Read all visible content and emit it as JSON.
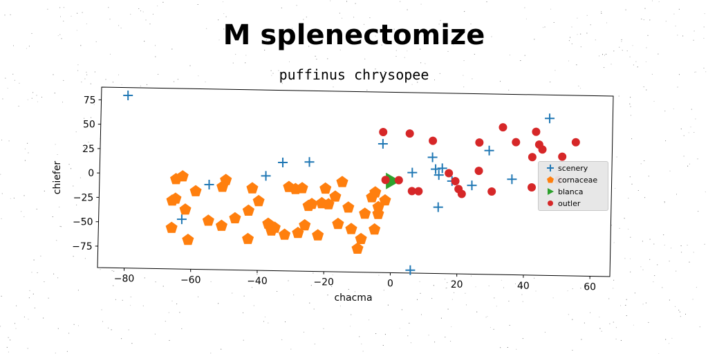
{
  "title": "M splenectomize",
  "subtitle": "puffinus chrysopee",
  "chart_data": {
    "type": "scatter",
    "xlabel": "chacma",
    "ylabel": "chiefer",
    "xlim": [
      -88,
      66
    ],
    "ylim": [
      -97,
      88
    ],
    "xticks": [
      -80,
      -60,
      -40,
      -20,
      0,
      20,
      40,
      60
    ],
    "xtick_labels": [
      "−80",
      "−60",
      "−40",
      "−20",
      "0",
      "20",
      "40",
      "60"
    ],
    "yticks": [
      75,
      50,
      25,
      0,
      -25,
      -50,
      -75
    ],
    "ytick_labels": [
      "75",
      "50",
      "25",
      "0",
      "−25",
      "−50",
      "−75"
    ],
    "grid": false,
    "legend_position": "center-right",
    "series": [
      {
        "name": "scenery",
        "marker": "plus",
        "color": "#1f77b4",
        "points": [
          [
            -80,
            80
          ],
          [
            -63,
            -46
          ],
          [
            -55,
            -10
          ],
          [
            -38,
            0
          ],
          [
            -33,
            14
          ],
          [
            -25,
            15
          ],
          [
            -3,
            35
          ],
          [
            6,
            6
          ],
          [
            6,
            -94
          ],
          [
            12,
            22
          ],
          [
            13,
            10
          ],
          [
            14,
            4
          ],
          [
            14,
            -29
          ],
          [
            15,
            11
          ],
          [
            18,
            -2
          ],
          [
            24,
            -6
          ],
          [
            29,
            30
          ],
          [
            36,
            1
          ],
          [
            47,
            64
          ]
        ]
      },
      {
        "name": "cornaceae",
        "marker": "pentagon",
        "color": "#ff7f0e",
        "points": [
          [
            -65,
            -5
          ],
          [
            -63,
            -2
          ],
          [
            -59,
            -17
          ],
          [
            -65,
            -25
          ],
          [
            -66,
            -27
          ],
          [
            -62,
            -36
          ],
          [
            -66,
            -55
          ],
          [
            -61,
            -67
          ],
          [
            -55,
            -47
          ],
          [
            -51,
            -52
          ],
          [
            -51,
            -12
          ],
          [
            -50,
            -5
          ],
          [
            -47,
            -44
          ],
          [
            -43,
            -36
          ],
          [
            -42,
            -13
          ],
          [
            -40,
            -26
          ],
          [
            -43,
            -65
          ],
          [
            -37,
            -49
          ],
          [
            -36,
            -56
          ],
          [
            -35,
            -53
          ],
          [
            -32,
            -60
          ],
          [
            -31,
            -11
          ],
          [
            -29,
            -13
          ],
          [
            -28,
            -58
          ],
          [
            -27,
            -12
          ],
          [
            -26,
            -50
          ],
          [
            -25,
            -30
          ],
          [
            -24,
            -28
          ],
          [
            -22,
            -60
          ],
          [
            -21,
            -27
          ],
          [
            -20,
            -12
          ],
          [
            -19,
            -28
          ],
          [
            -17,
            -20
          ],
          [
            -16,
            -48
          ],
          [
            -15,
            -5
          ],
          [
            -13,
            -31
          ],
          [
            -12,
            -53
          ],
          [
            -10,
            -73
          ],
          [
            -9,
            -63
          ],
          [
            -8,
            -37
          ],
          [
            -6,
            -20
          ],
          [
            -5,
            -15
          ],
          [
            -4,
            -30
          ],
          [
            -4,
            -37
          ],
          [
            -2,
            -23
          ],
          [
            -5,
            -53
          ]
        ]
      },
      {
        "name": "blanca",
        "marker": "triangle-right",
        "color": "#2ca02c",
        "points": [
          [
            0,
            -3
          ]
        ]
      },
      {
        "name": "outler",
        "marker": "circle",
        "color": "#d62728",
        "points": [
          [
            -3,
            47
          ],
          [
            -2,
            -2
          ],
          [
            2,
            -2
          ],
          [
            5,
            46
          ],
          [
            6,
            -13
          ],
          [
            8,
            -13
          ],
          [
            12,
            39
          ],
          [
            17,
            6
          ],
          [
            19,
            -2
          ],
          [
            20,
            -10
          ],
          [
            21,
            -15
          ],
          [
            26,
            38
          ],
          [
            26,
            9
          ],
          [
            30,
            -12
          ],
          [
            33,
            54
          ],
          [
            37,
            39
          ],
          [
            42,
            -7
          ],
          [
            42,
            24
          ],
          [
            43,
            50
          ],
          [
            44,
            37
          ],
          [
            45,
            32
          ],
          [
            50,
            1
          ],
          [
            51,
            25
          ],
          [
            55,
            40
          ]
        ]
      }
    ]
  }
}
